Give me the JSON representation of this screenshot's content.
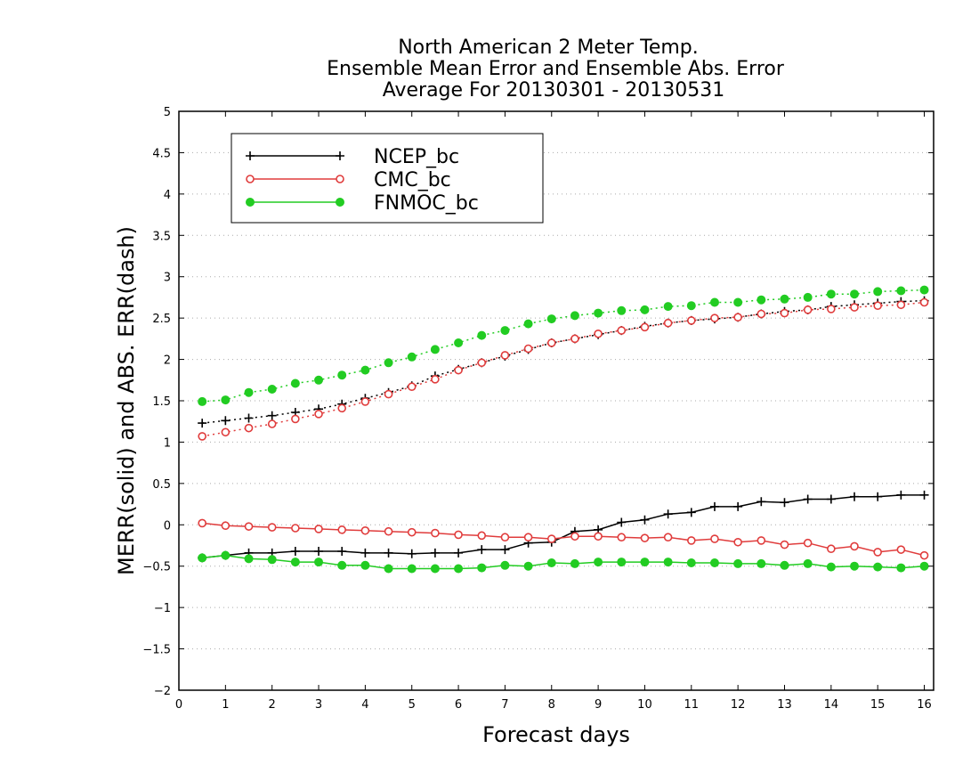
{
  "chart_data": {
    "type": "line",
    "title": [
      "North American 2 Meter Temp.",
      "Ensemble Mean Error and Ensemble Abs. Error",
      "Average For 20130301 - 20130531"
    ],
    "xlabel": "Forecast days",
    "ylabel": "MERR(solid) and ABS. ERR(dash)",
    "xlim": [
      0,
      16.2
    ],
    "ylim": [
      -2,
      5
    ],
    "xticks": [
      0,
      1,
      2,
      3,
      4,
      5,
      6,
      7,
      8,
      9,
      10,
      11,
      12,
      13,
      14,
      15,
      16
    ],
    "yticks": [
      -2,
      -1.5,
      -1,
      -0.5,
      0,
      0.5,
      1,
      1.5,
      2,
      2.5,
      3,
      3.5,
      4,
      4.5,
      5
    ],
    "grid": "horizontal-dotted",
    "legend_position": "top-left",
    "x": [
      0.5,
      1,
      1.5,
      2,
      2.5,
      3,
      3.5,
      4,
      4.5,
      5,
      5.5,
      6,
      6.5,
      7,
      7.5,
      8,
      8.5,
      9,
      9.5,
      10,
      10.5,
      11,
      11.5,
      12,
      12.5,
      13,
      13.5,
      14,
      14.5,
      15,
      15.5,
      16
    ],
    "series": [
      {
        "name": "NCEP_bc",
        "color": "#000000",
        "marker": "plus",
        "merr": [
          -0.4,
          -0.37,
          -0.34,
          -0.34,
          -0.32,
          -0.32,
          -0.32,
          -0.34,
          -0.34,
          -0.35,
          -0.34,
          -0.34,
          -0.3,
          -0.3,
          -0.22,
          -0.21,
          -0.08,
          -0.06,
          0.03,
          0.06,
          0.13,
          0.15,
          0.22,
          0.22,
          0.28,
          0.27,
          0.31,
          0.31,
          0.34,
          0.34,
          0.36,
          0.36
        ],
        "abs_err": [
          1.23,
          1.26,
          1.29,
          1.32,
          1.36,
          1.4,
          1.46,
          1.53,
          1.6,
          1.68,
          1.8,
          1.88,
          1.96,
          2.04,
          2.12,
          2.2,
          2.25,
          2.3,
          2.35,
          2.4,
          2.44,
          2.47,
          2.49,
          2.51,
          2.55,
          2.58,
          2.6,
          2.64,
          2.66,
          2.68,
          2.7,
          2.71
        ]
      },
      {
        "name": "CMC_bc",
        "color": "#e03c3c",
        "marker": "open-circle",
        "merr": [
          0.02,
          -0.01,
          -0.02,
          -0.03,
          -0.04,
          -0.05,
          -0.06,
          -0.07,
          -0.08,
          -0.09,
          -0.1,
          -0.12,
          -0.13,
          -0.15,
          -0.15,
          -0.17,
          -0.14,
          -0.14,
          -0.15,
          -0.16,
          -0.15,
          -0.19,
          -0.17,
          -0.21,
          -0.19,
          -0.24,
          -0.22,
          -0.29,
          -0.26,
          -0.33,
          -0.3,
          -0.37
        ],
        "abs_err": [
          1.07,
          1.12,
          1.17,
          1.22,
          1.28,
          1.34,
          1.41,
          1.49,
          1.58,
          1.67,
          1.76,
          1.87,
          1.96,
          2.05,
          2.13,
          2.2,
          2.25,
          2.31,
          2.35,
          2.39,
          2.44,
          2.47,
          2.5,
          2.51,
          2.55,
          2.56,
          2.6,
          2.61,
          2.63,
          2.65,
          2.66,
          2.69
        ]
      },
      {
        "name": "FNMOC_bc",
        "color": "#22cc22",
        "marker": "filled-circle",
        "merr": [
          -0.4,
          -0.37,
          -0.41,
          -0.42,
          -0.45,
          -0.45,
          -0.49,
          -0.49,
          -0.53,
          -0.53,
          -0.53,
          -0.53,
          -0.52,
          -0.49,
          -0.5,
          -0.46,
          -0.47,
          -0.45,
          -0.45,
          -0.45,
          -0.45,
          -0.46,
          -0.46,
          -0.47,
          -0.47,
          -0.49,
          -0.47,
          -0.51,
          -0.5,
          -0.51,
          -0.52,
          -0.5
        ],
        "abs_err": [
          1.49,
          1.51,
          1.6,
          1.64,
          1.71,
          1.75,
          1.81,
          1.87,
          1.96,
          2.03,
          2.12,
          2.2,
          2.29,
          2.35,
          2.43,
          2.49,
          2.53,
          2.56,
          2.59,
          2.6,
          2.64,
          2.65,
          2.69,
          2.69,
          2.72,
          2.73,
          2.75,
          2.79,
          2.79,
          2.82,
          2.83,
          2.84
        ]
      }
    ]
  }
}
